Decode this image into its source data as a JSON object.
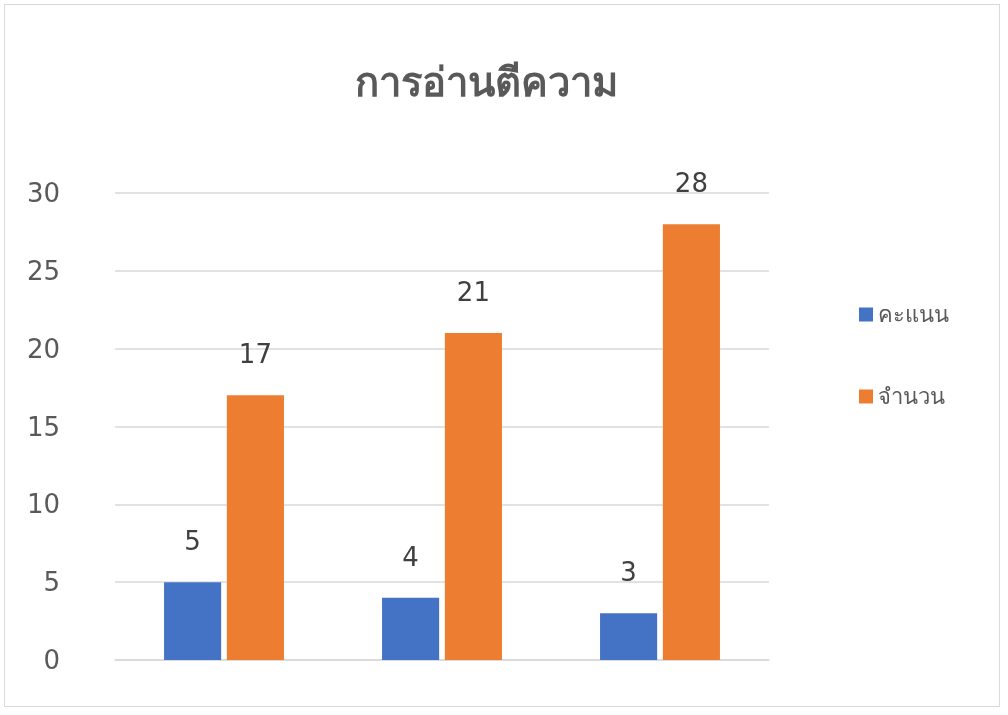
{
  "chart_data": {
    "type": "bar",
    "title": "การอ่านตีความ",
    "categories": [
      null,
      null,
      null
    ],
    "series": [
      {
        "name": "คะแนน",
        "color": "#4472c4",
        "values": [
          5,
          4,
          3
        ]
      },
      {
        "name": "จำนวน",
        "color": "#ed7d31",
        "values": [
          17,
          21,
          28
        ]
      }
    ],
    "ylim": [
      0,
      30
    ],
    "yticks": [
      0,
      5,
      10,
      15,
      20,
      25,
      30
    ],
    "grid": "y",
    "legend": "right",
    "data_labels": true
  }
}
